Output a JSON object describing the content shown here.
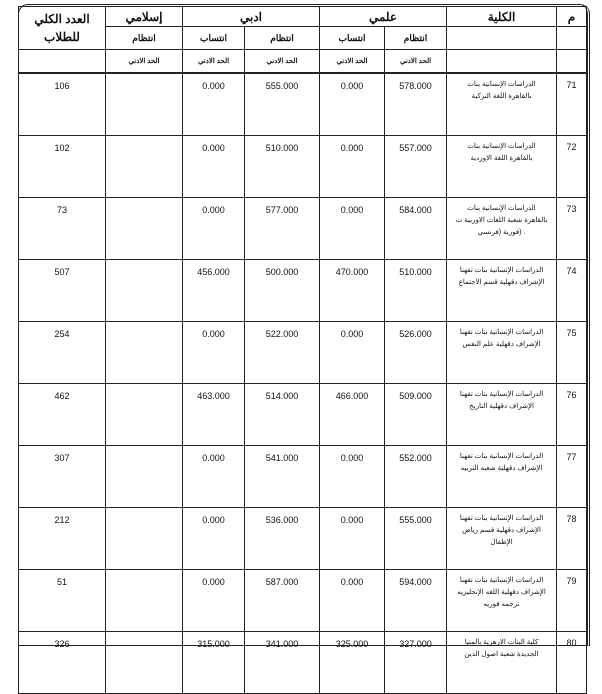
{
  "header": {
    "index": "م",
    "college": "الكلية",
    "scientific": "علمي",
    "literary": "ادبي",
    "islamic": "إسلامي",
    "total": "العدد الكلي للطلاب",
    "regular": "انتظام",
    "affiliation": "انتساب",
    "minimum": "الحد الادني"
  },
  "rows": [
    {
      "m": "71",
      "college": "الدراسات الإنسانية بنات بالقاهرة اللغة التركية",
      "sci_reg": "578.000",
      "sci_aff": "0.000",
      "lit_reg": "555.000",
      "lit_aff": "0.000",
      "isl_reg": "",
      "total": "106"
    },
    {
      "m": "72",
      "college": "الدراسات الإنسانية بنات بالقاهرة اللغة الاوردية",
      "sci_reg": "557.000",
      "sci_aff": "0.000",
      "lit_reg": "510.000",
      "lit_aff": "0.000",
      "isl_reg": "",
      "total": "102"
    },
    {
      "m": "73",
      "college": "الدراسات الإنسانية بنات بالقاهرة شعبة اللغات الاوربية ت . (فورية (فرنسي",
      "sci_reg": "584.000",
      "sci_aff": "0.000",
      "lit_reg": "577.000",
      "lit_aff": "0.000",
      "isl_reg": "",
      "total": "73"
    },
    {
      "m": "74",
      "college": "الدراسات الإنسانية بنات تفهنا الإشراف دقهلية قسم الاجتماع",
      "sci_reg": "510.000",
      "sci_aff": "470.000",
      "lit_reg": "500.000",
      "lit_aff": "456.000",
      "isl_reg": "",
      "total": "507"
    },
    {
      "m": "75",
      "college": "الدراسات الإنسانية بنات تفهنا الإشراف دقهلية علم النفس",
      "sci_reg": "526.000",
      "sci_aff": "0.000",
      "lit_reg": "522.000",
      "lit_aff": "0.000",
      "isl_reg": "",
      "total": "254"
    },
    {
      "m": "76",
      "college": "الدراسات الإنسانية بنات تفهنا الإشراف دقهلية التاريخ",
      "sci_reg": "509.000",
      "sci_aff": "466.000",
      "lit_reg": "514.000",
      "lit_aff": "463.000",
      "isl_reg": "",
      "total": "462"
    },
    {
      "m": "77",
      "college": "الدراسات الإنسانية بنات تفهنا الإشراف دقهلية شعبه التربيه",
      "sci_reg": "552.000",
      "sci_aff": "0.000",
      "lit_reg": "541.000",
      "lit_aff": "0.000",
      "isl_reg": "",
      "total": "307"
    },
    {
      "m": "78",
      "college": "الدراسات الإنسانية بنات تفهنا الإشراف دقهلية قسم رياض الإطفال",
      "sci_reg": "555.000",
      "sci_aff": "0.000",
      "lit_reg": "536.000",
      "lit_aff": "0.000",
      "isl_reg": "",
      "total": "212"
    },
    {
      "m": "79",
      "college": "الدراسات الإنسانية بنات تفهنا الإشراف دقهلية اللغه الإنجليزيه ترجمه فوريه",
      "sci_reg": "594.000",
      "sci_aff": "0.000",
      "lit_reg": "587.000",
      "lit_aff": "0.000",
      "isl_reg": "",
      "total": "51"
    },
    {
      "m": "80",
      "college": "كلية البنات الازهرية بالمنيا الجديدة شعبة اصول الدين",
      "sci_reg": "327.000",
      "sci_aff": "325.000",
      "lit_reg": "341.000",
      "lit_aff": "315.000",
      "isl_reg": "",
      "total": "326"
    }
  ]
}
